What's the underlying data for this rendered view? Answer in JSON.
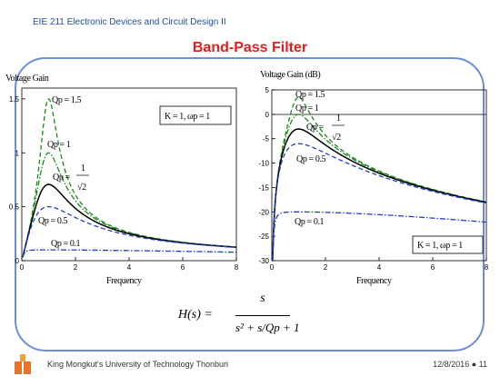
{
  "header": {
    "course": "EIE 211 Electronic Devices and Circuit Design II",
    "title": "Band-Pass Filter"
  },
  "formula": {
    "lhs": "H(s) =",
    "numerator": "s",
    "denominator": "s² + s/Qp + 1"
  },
  "footer": {
    "university": "King Mongkut's University of Technology Thonburi",
    "date": "12/8/2016",
    "page": "11",
    "logo_text": "KMUTT"
  },
  "colors": {
    "title": "#e02020",
    "course": "#1f4e9a",
    "frame": "#6a8fd8",
    "green": "#1a8a1a",
    "blue": "#1f3fd0",
    "black": "#000000"
  },
  "chart_data": [
    {
      "type": "line",
      "ylabel": "Voltage Gain",
      "xlabel": "Frequency",
      "xlim": [
        0,
        8
      ],
      "ylim": [
        0,
        1.6
      ],
      "xticks": [
        0,
        2,
        4,
        6,
        8
      ],
      "yticks": [
        0,
        0.5,
        1,
        1.5
      ],
      "ytick_labels": [
        "0",
        "0.5",
        "1",
        "1.5"
      ],
      "legend_box": "K = 1, ωp = 1",
      "series": [
        {
          "name": "Qp = 1.5",
          "color": "green",
          "dash": "dashed",
          "Q": 1.5
        },
        {
          "name": "Qp = 1",
          "color": "green",
          "dash": "dashdot",
          "Q": 1.0
        },
        {
          "name": "Qp = 1/√2",
          "color": "black",
          "dash": "solid",
          "Q": 0.7071
        },
        {
          "name": "Qp = 0.5",
          "color": "blue",
          "dash": "dashed",
          "Q": 0.5
        },
        {
          "name": "Qp = 0.1",
          "color": "blue",
          "dash": "dashdot",
          "Q": 0.1
        }
      ],
      "labels": {
        "q15": "Qp = 1.5",
        "q1": "Qp = 1",
        "q707_prefix": "Qp =",
        "q707_num": "1",
        "q707_den": "√2",
        "q05": "Qp = 0.5",
        "q01": "Qp = 0.1"
      }
    },
    {
      "type": "line",
      "ylabel": "Voltage Gain (dB)",
      "xlabel": "Frequency",
      "xlim": [
        0,
        8
      ],
      "ylim": [
        -30,
        5
      ],
      "xticks": [
        0,
        2,
        4,
        6,
        8
      ],
      "yticks": [
        5,
        0,
        -5,
        -10,
        -15,
        -20,
        -25,
        -30
      ],
      "legend_box": "K = 1, ωp = 1",
      "series": [
        {
          "name": "Qp = 1.5",
          "color": "green",
          "dash": "dashed",
          "Q": 1.5
        },
        {
          "name": "Qp = 1",
          "color": "green",
          "dash": "dashdot",
          "Q": 1.0
        },
        {
          "name": "Qp = 1/√2",
          "color": "black",
          "dash": "solid",
          "Q": 0.7071
        },
        {
          "name": "Qp = 0.5",
          "color": "blue",
          "dash": "dashed",
          "Q": 0.5
        },
        {
          "name": "Qp = 0.1",
          "color": "blue",
          "dash": "dashdot",
          "Q": 0.1
        }
      ],
      "labels": {
        "q15": "Qp = 1.5",
        "q1": "Qp = 1",
        "q707_prefix": "Qp =",
        "q707_num": "1",
        "q707_den": "√2",
        "q05": "Qp = 0.5",
        "q01": "Qp = 0.1"
      }
    }
  ]
}
